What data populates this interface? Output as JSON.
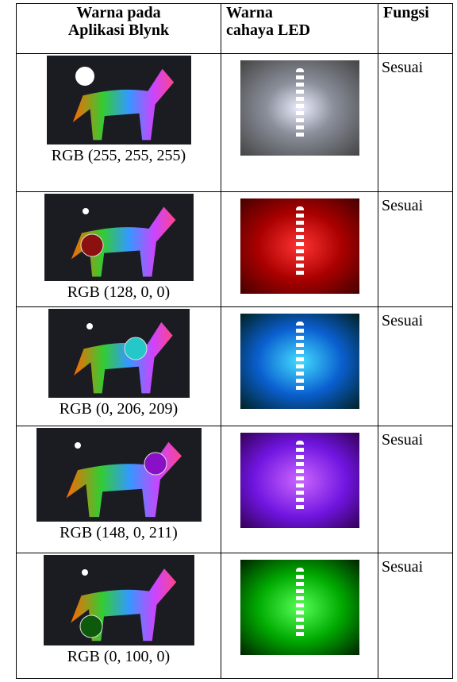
{
  "table": {
    "header": [
      [
        "Warna pada",
        "Aplikasi Blynk"
      ],
      [
        "Warna",
        "cahaya LED"
      ],
      [
        "Fungsi"
      ]
    ],
    "rows": [
      [
        "RGB (255, 255, 255)",
        "Sesuai"
      ],
      [
        "RGB (128, 0, 0)",
        "Sesuai"
      ],
      [
        "RGB (0, 206, 209)",
        "Sesuai"
      ],
      [
        "RGB (148, 0, 211)",
        "Sesuai"
      ],
      [
        "RGB (0, 100, 0)",
        "Sesuai"
      ]
    ]
  }
}
